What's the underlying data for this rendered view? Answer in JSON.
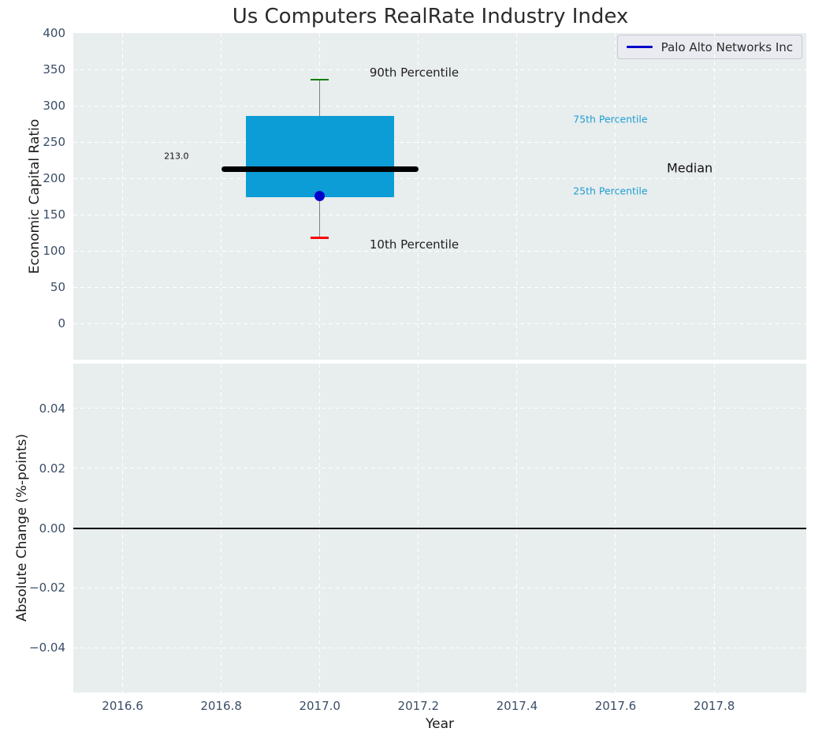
{
  "title": "Us Computers RealRate Industry Index",
  "legend": {
    "label": "Palo Alto Networks Inc",
    "line_color": "#0000cd"
  },
  "colors": {
    "figure_bg": "#ffffff",
    "axes_bg": "#e8edee",
    "grid": "#ffffff",
    "tick_label": "#3a4d66",
    "box_fill": "#0c9dd6",
    "percentile_label_cyan": "#1f9ed0",
    "median_line": "#000000",
    "whisker": "#7f7f7f",
    "cap_90th": "#008000",
    "cap_10th": "#ff0000",
    "company_marker": "#0000cd",
    "zero_line": "#000000"
  },
  "chart_data": [
    {
      "type": "boxplot",
      "panel": "top",
      "ylabel": "Economic Capital Ratio",
      "xlim": [
        2016.5,
        2017.987
      ],
      "ylim": [
        -50,
        400
      ],
      "grid": true,
      "legend_position": "upper right",
      "yticks": [
        {
          "v": 400,
          "label": "400"
        },
        {
          "v": 350,
          "label": "350"
        },
        {
          "v": 300,
          "label": "300"
        },
        {
          "v": 250,
          "label": "250"
        },
        {
          "v": 200,
          "label": "200"
        },
        {
          "v": 150,
          "label": "150"
        },
        {
          "v": 100,
          "label": "100"
        },
        {
          "v": 50,
          "label": "50"
        },
        {
          "v": 0,
          "label": "0"
        }
      ],
      "xticks": [
        {
          "v": 2016.6,
          "label": "2016.6"
        },
        {
          "v": 2016.8,
          "label": "2016.8"
        },
        {
          "v": 2017.0,
          "label": "2017.0"
        },
        {
          "v": 2017.2,
          "label": "2017.2"
        },
        {
          "v": 2017.4,
          "label": "2017.4"
        },
        {
          "v": 2017.6,
          "label": "2017.6"
        },
        {
          "v": 2017.8,
          "label": "2017.8"
        }
      ],
      "series": [
        {
          "name": "Palo Alto Networks Inc",
          "x": 2017.0,
          "p10": 118,
          "p25": 174,
          "median": 213,
          "p75": 286,
          "p90": 336,
          "company_value": 176,
          "median_label": "213.0",
          "box_halfwidth_years": 0.15,
          "median_halfwidth_years": 0.2,
          "cap_halfwidth_years": 0.018
        }
      ],
      "annotations": [
        {
          "id": "label-90th-percentile",
          "text": "90th Percentile",
          "x": 2017.101,
          "y": 346,
          "size": 15,
          "color": "#1f1f1f"
        },
        {
          "id": "label-10th-percentile",
          "text": "10th Percentile",
          "x": 2017.101,
          "y": 109,
          "size": 15,
          "color": "#1f1f1f"
        },
        {
          "id": "label-75th-percentile",
          "text": "75th Percentile",
          "x": 2017.514,
          "y": 281,
          "size": 12.5,
          "color": "#1f9ed0"
        },
        {
          "id": "label-25th-percentile",
          "text": "25th Percentile",
          "x": 2017.514,
          "y": 183,
          "size": 12.5,
          "color": "#1f9ed0"
        },
        {
          "id": "label-median",
          "text": "Median",
          "x": 2017.704,
          "y": 214,
          "size": 16,
          "color": "#111111"
        },
        {
          "id": "label-median-value",
          "text": "213.0",
          "x": 2016.684,
          "y": 230,
          "size": 11,
          "color": "#111111"
        }
      ]
    },
    {
      "type": "line",
      "panel": "bottom",
      "ylabel": "Absolute Change (%-points)",
      "xlabel": "Year",
      "xlim": [
        2016.5,
        2017.987
      ],
      "ylim": [
        -0.055,
        0.055
      ],
      "grid": true,
      "zero_line": 0,
      "yticks": [
        {
          "v": 0.04,
          "label": "0.04"
        },
        {
          "v": 0.02,
          "label": "0.02"
        },
        {
          "v": 0.0,
          "label": "0.00"
        },
        {
          "v": -0.02,
          "label": "−0.02"
        },
        {
          "v": -0.04,
          "label": "−0.04"
        }
      ],
      "xticks": [
        {
          "v": 2016.6,
          "label": "2016.6"
        },
        {
          "v": 2016.8,
          "label": "2016.8"
        },
        {
          "v": 2017.0,
          "label": "2017.0"
        },
        {
          "v": 2017.2,
          "label": "2017.2"
        },
        {
          "v": 2017.4,
          "label": "2017.4"
        },
        {
          "v": 2017.6,
          "label": "2017.6"
        },
        {
          "v": 2017.8,
          "label": "2017.8"
        }
      ],
      "series": []
    }
  ]
}
